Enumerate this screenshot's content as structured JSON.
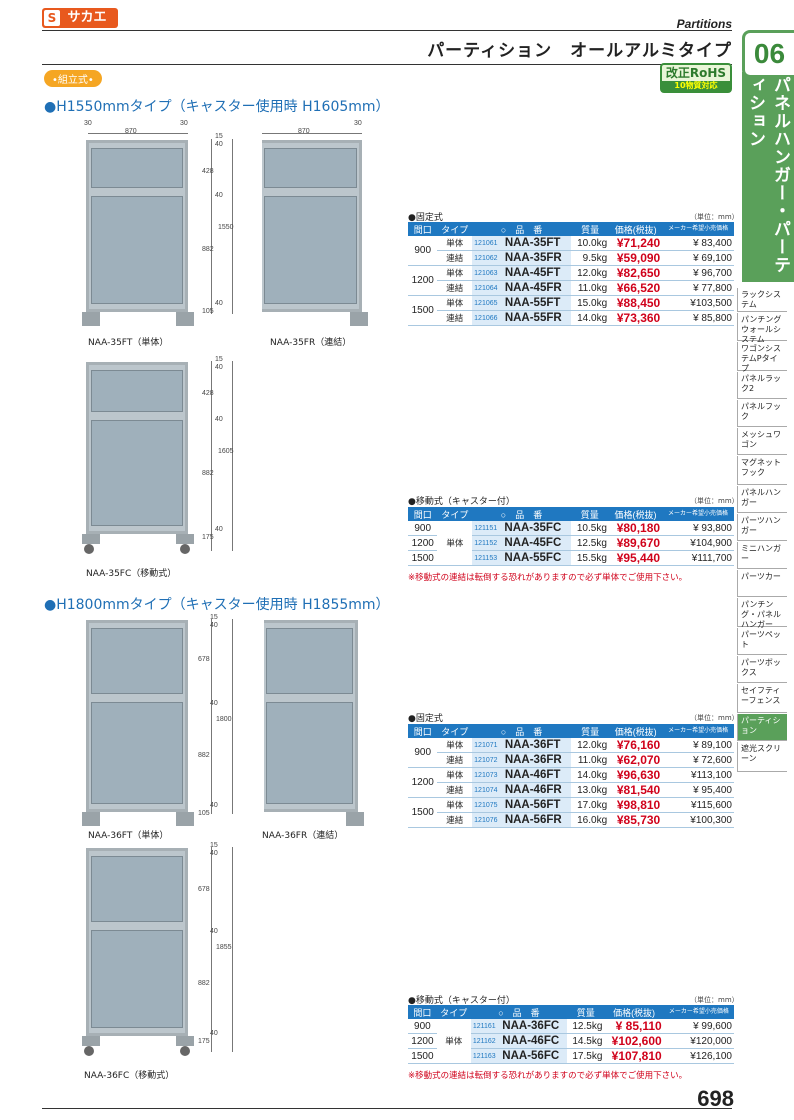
{
  "header": {
    "brand": "サカエ",
    "brand_mark": "S",
    "category_en": "Partitions",
    "title": "パーティション　オールアルミタイプ",
    "chapter_num": "06",
    "chapter_label": "パネルハンガー・パーティション",
    "assembly_badge": "•組立式•",
    "rohs_line1": "改正RoHS",
    "rohs_line2": "10物質対応"
  },
  "sections": {
    "h1550": {
      "heading": "●H1550mmタイプ（キャスター使用時 H1605mm）",
      "dims_ft": {
        "w_left": "30",
        "w": "870",
        "w_right": "30",
        "top": "15",
        "top2": "40",
        "upper": "428",
        "mid": "40",
        "total": "1550",
        "lower": "882",
        "bottom": "40",
        "foot": "105"
      },
      "dims_fr": {
        "w": "870",
        "w_right": "30"
      },
      "dims_fc": {
        "top": "15",
        "top2": "40",
        "upper": "428",
        "mid": "40",
        "total": "1605",
        "lower": "882",
        "bottom": "40",
        "foot": "175"
      },
      "captions": {
        "ft": "NAA-35FT（単体）",
        "fr": "NAA-35FR（連結）",
        "fc": "NAA-35FC（移動式）"
      }
    },
    "h1800": {
      "heading": "●H1800mmタイプ（キャスター使用時 H1855mm）",
      "dims_ft": {
        "top": "15",
        "top2": "40",
        "upper": "678",
        "mid": "40",
        "total": "1800",
        "lower": "882",
        "bottom": "40",
        "foot": "105"
      },
      "dims_fc": {
        "top": "15",
        "top2": "40",
        "upper": "678",
        "mid": "40",
        "total": "1855",
        "lower": "882",
        "bottom": "40",
        "foot": "175"
      },
      "captions": {
        "ft": "NAA-36FT（単体）",
        "fr": "NAA-36FR（連結）",
        "fc": "NAA-36FC（移動式）"
      }
    }
  },
  "table_headers": {
    "width": "間口",
    "type": "タイプ",
    "model": "○　品　番",
    "weight": "質量",
    "price": "価格(税抜)",
    "list": "メーカー希望小売価格",
    "unit": "（単位：mm）"
  },
  "table_fixed_35": {
    "label": "●固定式",
    "rows": [
      {
        "w": "900",
        "type": "単体",
        "code": "121061",
        "model": "NAA-35FT",
        "wt": "10.0kg",
        "price": "¥71,240",
        "list": "¥ 83,400"
      },
      {
        "w": "",
        "type": "連結",
        "code": "121062",
        "model": "NAA-35FR",
        "wt": "9.5kg",
        "price": "¥59,090",
        "list": "¥ 69,100"
      },
      {
        "w": "1200",
        "type": "単体",
        "code": "121063",
        "model": "NAA-45FT",
        "wt": "12.0kg",
        "price": "¥82,650",
        "list": "¥ 96,700"
      },
      {
        "w": "",
        "type": "連結",
        "code": "121064",
        "model": "NAA-45FR",
        "wt": "11.0kg",
        "price": "¥66,520",
        "list": "¥ 77,800"
      },
      {
        "w": "1500",
        "type": "単体",
        "code": "121065",
        "model": "NAA-55FT",
        "wt": "15.0kg",
        "price": "¥88,450",
        "list": "¥103,500"
      },
      {
        "w": "",
        "type": "連結",
        "code": "121066",
        "model": "NAA-55FR",
        "wt": "14.0kg",
        "price": "¥73,360",
        "list": "¥ 85,800"
      }
    ]
  },
  "table_mobile_35": {
    "label": "●移動式（キャスター付）",
    "type": "単体",
    "note": "※移動式の連結は転倒する恐れがありますので必ず単体でご使用下さい。",
    "rows": [
      {
        "w": "900",
        "code": "121151",
        "model": "NAA-35FC",
        "wt": "10.5kg",
        "price": "¥80,180",
        "list": "¥ 93,800"
      },
      {
        "w": "1200",
        "code": "121152",
        "model": "NAA-45FC",
        "wt": "12.5kg",
        "price": "¥89,670",
        "list": "¥104,900"
      },
      {
        "w": "1500",
        "code": "121153",
        "model": "NAA-55FC",
        "wt": "15.5kg",
        "price": "¥95,440",
        "list": "¥111,700"
      }
    ]
  },
  "table_fixed_36": {
    "label": "●固定式",
    "rows": [
      {
        "w": "900",
        "type": "単体",
        "code": "121071",
        "model": "NAA-36FT",
        "wt": "12.0kg",
        "price": "¥76,160",
        "list": "¥ 89,100"
      },
      {
        "w": "",
        "type": "連結",
        "code": "121072",
        "model": "NAA-36FR",
        "wt": "11.0kg",
        "price": "¥62,070",
        "list": "¥ 72,600"
      },
      {
        "w": "1200",
        "type": "単体",
        "code": "121073",
        "model": "NAA-46FT",
        "wt": "14.0kg",
        "price": "¥96,630",
        "list": "¥113,100"
      },
      {
        "w": "",
        "type": "連結",
        "code": "121074",
        "model": "NAA-46FR",
        "wt": "13.0kg",
        "price": "¥81,540",
        "list": "¥ 95,400"
      },
      {
        "w": "1500",
        "type": "単体",
        "code": "121075",
        "model": "NAA-56FT",
        "wt": "17.0kg",
        "price": "¥98,810",
        "list": "¥115,600"
      },
      {
        "w": "",
        "type": "連結",
        "code": "121076",
        "model": "NAA-56FR",
        "wt": "16.0kg",
        "price": "¥85,730",
        "list": "¥100,300"
      }
    ]
  },
  "table_mobile_36": {
    "label": "●移動式（キャスター付）",
    "type": "単体",
    "note": "※移動式の連結は転倒する恐れがありますので必ず単体でご使用下さい。",
    "rows": [
      {
        "w": "900",
        "code": "121161",
        "model": "NAA-36FC",
        "wt": "12.5kg",
        "price": "¥ 85,110",
        "list": "¥ 99,600"
      },
      {
        "w": "1200",
        "code": "121162",
        "model": "NAA-46FC",
        "wt": "14.5kg",
        "price": "¥102,600",
        "list": "¥120,000"
      },
      {
        "w": "1500",
        "code": "121163",
        "model": "NAA-56FC",
        "wt": "17.5kg",
        "price": "¥107,810",
        "list": "¥126,100"
      }
    ]
  },
  "side_nav": [
    "ラックシステム",
    "パンチングウォールシステム",
    "ワゴンシステムPタイプ",
    "パネルラック2",
    "パネルフック",
    "メッシュワゴン",
    "マグネットフック",
    "パネルハンガー",
    "パーツハンガー",
    "ミニハンガー",
    "パーツカー",
    "パンチング・パネルハンガー",
    "パーツペット",
    "パーツボックス",
    "セイフティーフェンス",
    "パーティション",
    "遮光スクリーン"
  ],
  "page_number": "698"
}
